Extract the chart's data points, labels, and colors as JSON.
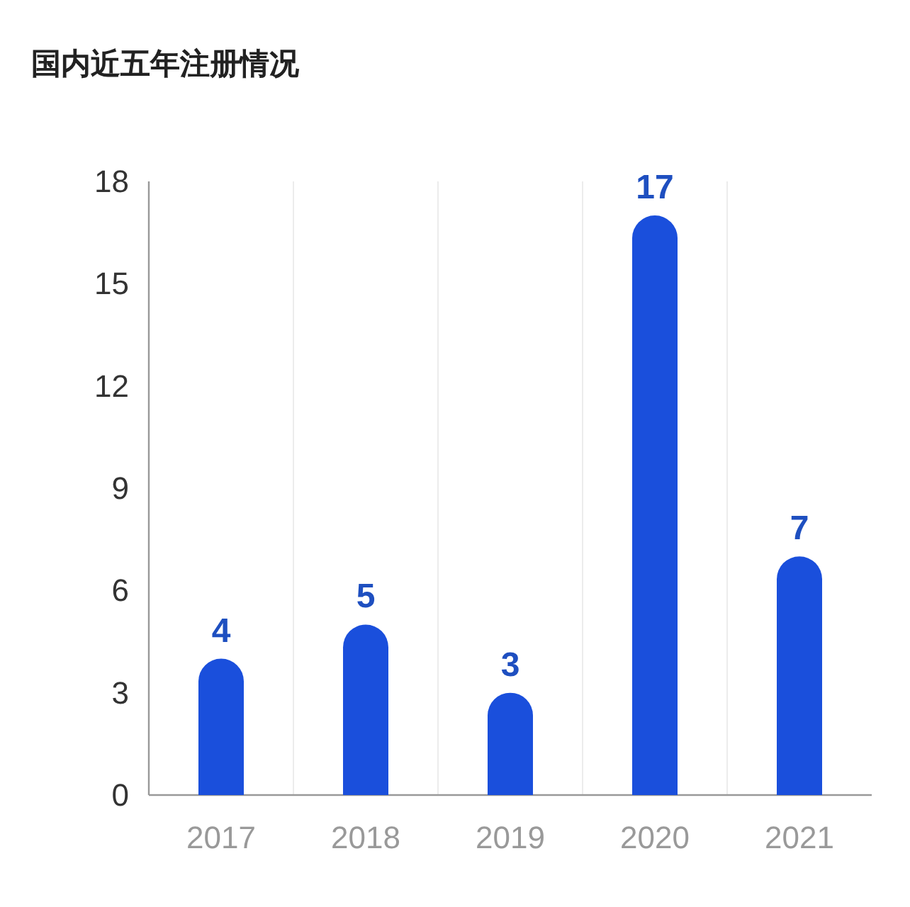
{
  "chart_data": {
    "type": "bar",
    "title": "国内近五年注册情况",
    "categories": [
      "2017",
      "2018",
      "2019",
      "2020",
      "2021"
    ],
    "values": [
      4,
      5,
      3,
      17,
      7
    ],
    "color": "#1a4fdc",
    "ylim": [
      0,
      18
    ],
    "yticks": [
      0,
      3,
      6,
      9,
      12,
      15,
      18
    ],
    "grid": "x",
    "data_labels": true
  }
}
